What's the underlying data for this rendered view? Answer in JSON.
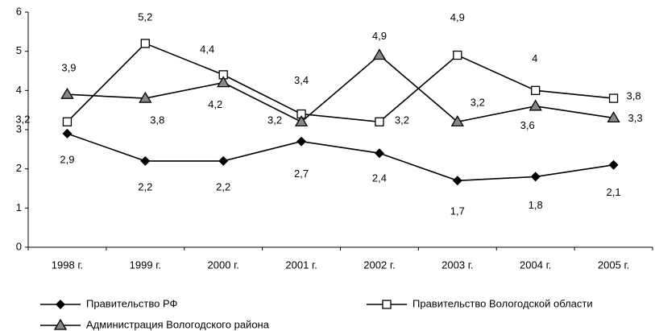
{
  "chart_data": {
    "type": "line",
    "categories": [
      "1998 г.",
      "1999 г.",
      "2000 г.",
      "2001 г.",
      "2002 г.",
      "2003 г.",
      "2004 г.",
      "2005 г."
    ],
    "series": [
      {
        "name": "Правительство РФ",
        "color": "#000000",
        "marker": "diamond",
        "values": [
          2.9,
          2.2,
          2.2,
          2.7,
          2.4,
          1.7,
          1.8,
          2.1
        ],
        "value_labels": [
          "2,9",
          "2,2",
          "2,2",
          "2,7",
          "2,4",
          "1,7",
          "1,8",
          "2,1"
        ]
      },
      {
        "name": "Правительство Вологодской области",
        "color": "#000000",
        "marker": "square",
        "values": [
          3.2,
          5.2,
          4.4,
          3.4,
          3.2,
          4.9,
          4,
          3.8
        ],
        "value_labels": [
          "3,2",
          "5,2",
          "4,4",
          "3,4",
          "3,2",
          "4,9",
          "4",
          "3,8"
        ]
      },
      {
        "name": "Администрация Вологодского района",
        "color": "#000000",
        "marker": "triangle",
        "values": [
          3.9,
          3.8,
          4.2,
          3.2,
          4.9,
          3.2,
          3.6,
          3.3
        ],
        "value_labels": [
          "3,9",
          "3,8",
          "4,2",
          "3,2",
          "4,9",
          "3,2",
          "3,6",
          "3,3"
        ]
      }
    ],
    "ylim": [
      0,
      6
    ],
    "yticks": [
      0,
      1,
      2,
      3,
      4,
      5,
      6
    ],
    "grid": false
  }
}
